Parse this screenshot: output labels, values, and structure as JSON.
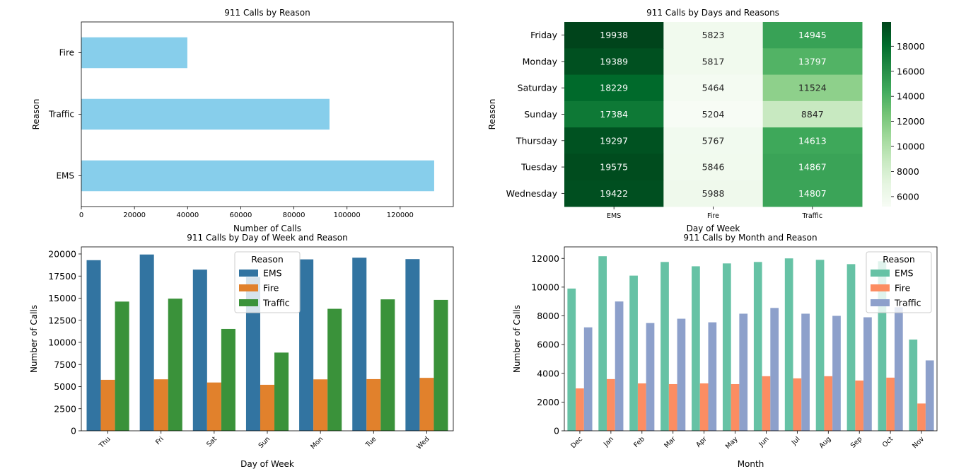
{
  "chart_data": [
    {
      "type": "bar",
      "orientation": "horizontal",
      "title": "911 Calls by Reason",
      "xlabel": "Number of Calls",
      "ylabel": "Reason",
      "categories": [
        "EMS",
        "Traffic",
        "Fire"
      ],
      "values": [
        132800,
        93400,
        39900
      ],
      "xlim": [
        0,
        140000
      ],
      "xticks": [
        "0",
        "20000",
        "40000",
        "60000",
        "80000",
        "100000",
        "120000"
      ],
      "color": "#87ceeb"
    },
    {
      "type": "heatmap",
      "title": "911 Calls by Days and Reasons",
      "xlabel": "Day of Week",
      "ylabel": "Reason",
      "columns": [
        "EMS",
        "Fire",
        "Traffic"
      ],
      "rows": [
        "Friday",
        "Monday",
        "Saturday",
        "Sunday",
        "Thursday",
        "Tuesday",
        "Wednesday"
      ],
      "values": [
        [
          19938,
          5823,
          14945
        ],
        [
          19389,
          5817,
          13797
        ],
        [
          18229,
          5464,
          11524
        ],
        [
          17384,
          5204,
          8847
        ],
        [
          19297,
          5767,
          14613
        ],
        [
          19575,
          5846,
          14867
        ],
        [
          19422,
          5988,
          14807
        ]
      ],
      "colorbar_ticks": [
        "6000",
        "8000",
        "10000",
        "12000",
        "14000",
        "16000",
        "18000"
      ],
      "colorbar_range": [
        5204,
        19938
      ],
      "colormap": "Greens"
    },
    {
      "type": "bar",
      "title": "911 Calls by Day of Week and Reason",
      "xlabel": "Day of Week",
      "ylabel": "Number of Calls",
      "categories": [
        "Thu",
        "Fri",
        "Sat",
        "Sun",
        "Mon",
        "Tue",
        "Wed"
      ],
      "ylim": [
        0,
        20800
      ],
      "yticks": [
        "0",
        "2500",
        "5000",
        "7500",
        "10000",
        "12500",
        "15000",
        "17500",
        "20000"
      ],
      "legend_title": "Reason",
      "legend_position": "upper-center",
      "series": [
        {
          "name": "EMS",
          "color": "#3274a1",
          "values": [
            19297,
            19938,
            18229,
            17384,
            19389,
            19575,
            19422
          ]
        },
        {
          "name": "Fire",
          "color": "#e1812c",
          "values": [
            5767,
            5823,
            5464,
            5204,
            5817,
            5846,
            5988
          ]
        },
        {
          "name": "Traffic",
          "color": "#3a923a",
          "values": [
            14613,
            14945,
            11524,
            8847,
            13797,
            14867,
            14807
          ]
        }
      ]
    },
    {
      "type": "bar",
      "title": "911 Calls by Month and Reason",
      "xlabel": "Month",
      "ylabel": "Number of Calls",
      "categories": [
        "Dec",
        "Jan",
        "Feb",
        "Mar",
        "Apr",
        "May",
        "Jun",
        "Jul",
        "Aug",
        "Sep",
        "Oct",
        "Nov"
      ],
      "ylim": [
        0,
        12800
      ],
      "yticks": [
        "0",
        "2000",
        "4000",
        "6000",
        "8000",
        "10000",
        "12000"
      ],
      "legend_title": "Reason",
      "legend_position": "top-right",
      "series": [
        {
          "name": "EMS",
          "color": "#66c2a5",
          "values": [
            9900,
            12150,
            10800,
            11750,
            11450,
            11650,
            11750,
            12000,
            11900,
            11600,
            11800,
            6350
          ]
        },
        {
          "name": "Fire",
          "color": "#fc8d62",
          "values": [
            2950,
            3600,
            3300,
            3250,
            3300,
            3250,
            3800,
            3650,
            3800,
            3500,
            3700,
            1900
          ]
        },
        {
          "name": "Traffic",
          "color": "#8da0cb",
          "values": [
            7200,
            9000,
            7500,
            7800,
            7550,
            8150,
            8550,
            8150,
            8000,
            7900,
            8600,
            4900
          ]
        }
      ]
    }
  ]
}
